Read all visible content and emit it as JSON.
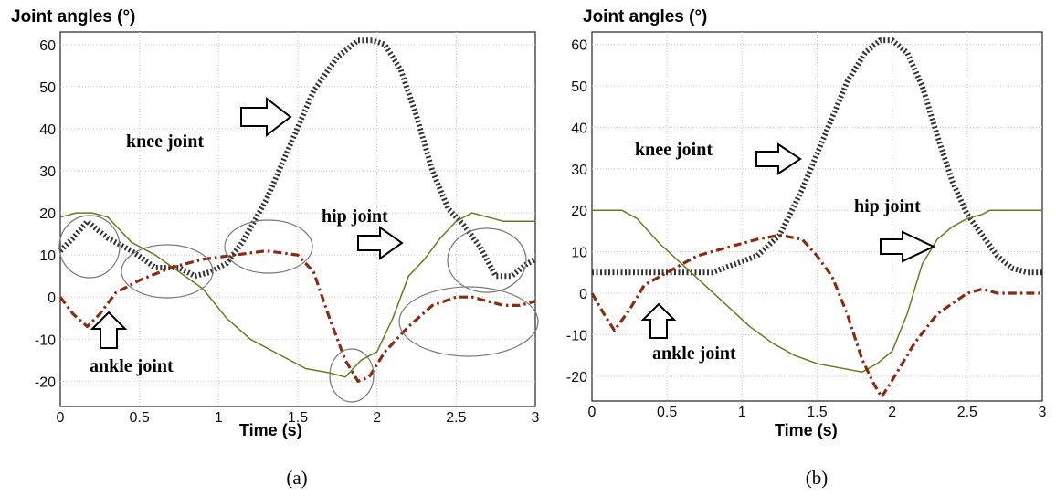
{
  "chart_data": [
    {
      "type": "line",
      "panel_caption": "(a)",
      "ylabel": "Joint angles (°)",
      "xlabel": "Time (s)",
      "xlim": [
        0,
        3
      ],
      "ylim": [
        -26,
        63
      ],
      "xticks": [
        0,
        0.5,
        1,
        1.5,
        2,
        2.5,
        3
      ],
      "xtick_labels": [
        "0",
        "0.5",
        "1",
        "1.5",
        "2",
        "2.5",
        "3"
      ],
      "yticks": [
        -20,
        -10,
        0,
        10,
        20,
        30,
        40,
        50,
        60
      ],
      "ytick_labels": [
        "-20",
        "-10",
        "0",
        "10",
        "20",
        "30",
        "40",
        "50",
        "60"
      ],
      "grid": true,
      "series": [
        {
          "name": "knee joint",
          "style": "dotted-thick",
          "color": "#333333",
          "x": [
            0,
            0.08,
            0.17,
            0.3,
            0.45,
            0.6,
            0.75,
            0.85,
            0.95,
            1.05,
            1.15,
            1.3,
            1.45,
            1.6,
            1.75,
            1.88,
            1.97,
            2.05,
            2.15,
            2.25,
            2.35,
            2.45,
            2.55,
            2.65,
            2.75,
            2.85,
            2.95,
            3.0
          ],
          "y": [
            11,
            14,
            18,
            14,
            11,
            7,
            7,
            5,
            6,
            8,
            13,
            23,
            36,
            49,
            57,
            61,
            61,
            60,
            54,
            43,
            30,
            21,
            17,
            12,
            5,
            5,
            8,
            9
          ]
        },
        {
          "name": "hip joint",
          "style": "solid",
          "color": "#6b7a1f",
          "x": [
            0,
            0.1,
            0.2,
            0.3,
            0.45,
            0.6,
            0.75,
            0.9,
            1.05,
            1.2,
            1.35,
            1.55,
            1.7,
            1.8,
            1.9,
            2.0,
            2.1,
            2.2,
            2.3,
            2.4,
            2.5,
            2.6,
            2.7,
            2.8,
            2.9,
            3.0
          ],
          "y": [
            19,
            20,
            20,
            19,
            13,
            10,
            6,
            2,
            -5,
            -10,
            -13,
            -17,
            -18,
            -19,
            -15,
            -13,
            -5,
            5,
            9,
            14,
            18,
            20,
            19,
            18,
            18,
            18
          ]
        },
        {
          "name": "ankle joint",
          "style": "dash-dot",
          "color": "#8b2a10",
          "x": [
            0,
            0.08,
            0.17,
            0.25,
            0.35,
            0.5,
            0.7,
            0.9,
            1.1,
            1.3,
            1.5,
            1.6,
            1.7,
            1.8,
            1.88,
            1.95,
            2.05,
            2.2,
            2.35,
            2.5,
            2.6,
            2.7,
            2.8,
            2.9,
            3.0
          ],
          "y": [
            0,
            -4,
            -7,
            -4,
            1,
            4,
            7,
            9,
            10,
            11,
            10,
            6,
            -5,
            -15,
            -20,
            -19,
            -13,
            -7,
            -2,
            0,
            0,
            -1,
            -2,
            -2,
            -1
          ]
        }
      ],
      "annotations": [
        "knee joint",
        "hip joint",
        "ankle joint"
      ]
    },
    {
      "type": "line",
      "panel_caption": "(b)",
      "ylabel": "Joint angles (°)",
      "xlabel": "Time (s)",
      "xlim": [
        0,
        3
      ],
      "ylim": [
        -26,
        63
      ],
      "xticks": [
        0,
        0.5,
        1,
        1.5,
        2,
        2.5,
        3
      ],
      "xtick_labels": [
        "0",
        "0.5",
        "1",
        "1.5",
        "2",
        "2.5",
        "3"
      ],
      "yticks": [
        -20,
        -10,
        0,
        10,
        20,
        30,
        40,
        50,
        60
      ],
      "ytick_labels": [
        "-20",
        "-10",
        "0",
        "10",
        "20",
        "30",
        "40",
        "50",
        "60"
      ],
      "grid": true,
      "series": [
        {
          "name": "knee joint",
          "style": "dotted-thick",
          "color": "#333333",
          "x": [
            0,
            0.2,
            0.4,
            0.6,
            0.8,
            0.95,
            1.1,
            1.25,
            1.4,
            1.55,
            1.7,
            1.82,
            1.92,
            2.0,
            2.1,
            2.2,
            2.3,
            2.4,
            2.5,
            2.6,
            2.7,
            2.8,
            2.9,
            3.0
          ],
          "y": [
            5,
            5,
            5,
            5,
            5,
            7,
            9,
            14,
            25,
            38,
            51,
            58,
            61,
            61,
            58,
            50,
            38,
            27,
            19,
            14,
            9,
            6,
            5,
            5
          ]
        },
        {
          "name": "hip joint",
          "style": "solid",
          "color": "#6b7a1f",
          "x": [
            0,
            0.1,
            0.2,
            0.3,
            0.45,
            0.6,
            0.75,
            0.9,
            1.05,
            1.2,
            1.35,
            1.5,
            1.65,
            1.8,
            1.9,
            2.0,
            2.1,
            2.2,
            2.3,
            2.4,
            2.5,
            2.6,
            2.65,
            2.8,
            3.0
          ],
          "y": [
            20,
            20,
            20,
            18,
            12,
            7,
            2,
            -3,
            -8,
            -12,
            -15,
            -17,
            -18,
            -19,
            -17,
            -14,
            -5,
            7,
            13,
            16,
            18,
            19,
            20,
            20,
            20
          ]
        },
        {
          "name": "ankle joint",
          "style": "dash-dot",
          "color": "#8b2a10",
          "x": [
            0,
            0.08,
            0.15,
            0.25,
            0.35,
            0.5,
            0.7,
            0.9,
            1.1,
            1.25,
            1.4,
            1.5,
            1.6,
            1.7,
            1.8,
            1.88,
            1.93,
            2.0,
            2.15,
            2.3,
            2.5,
            2.6,
            2.7,
            2.85,
            3.0
          ],
          "y": [
            0,
            -5,
            -9,
            -4,
            2,
            5,
            9,
            11,
            13,
            14,
            13,
            9,
            4,
            -5,
            -16,
            -22,
            -25,
            -21,
            -12,
            -5,
            0,
            1,
            0,
            0,
            0
          ]
        }
      ],
      "annotations": [
        "knee joint",
        "hip joint",
        "ankle joint"
      ]
    }
  ]
}
